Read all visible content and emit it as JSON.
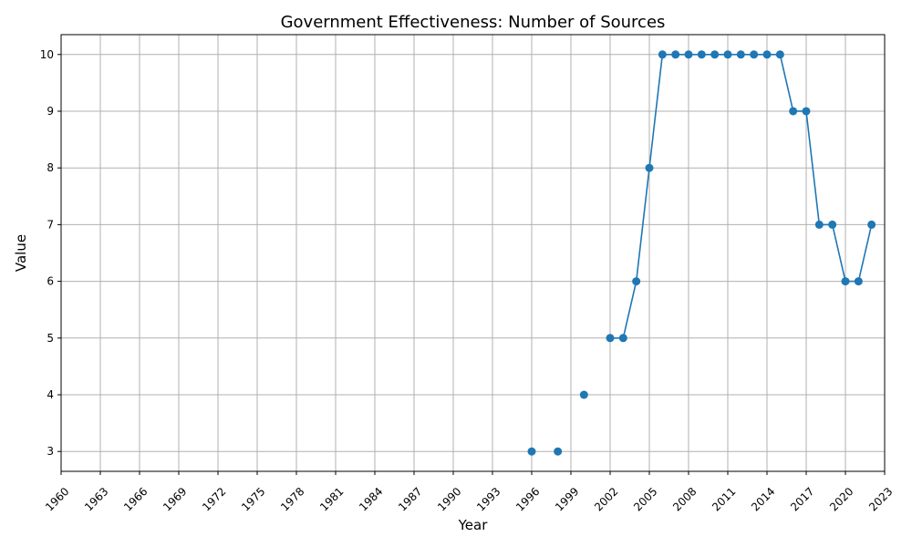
{
  "chart_data": {
    "type": "line",
    "title": "Government Effectiveness: Number of Sources",
    "xlabel": "Year",
    "ylabel": "Value",
    "xlim": [
      1960,
      2023
    ],
    "ylim": [
      2.65,
      10.35
    ],
    "x_ticks": [
      1960,
      1963,
      1966,
      1969,
      1972,
      1975,
      1978,
      1981,
      1984,
      1987,
      1990,
      1993,
      1996,
      1999,
      2002,
      2005,
      2008,
      2011,
      2014,
      2017,
      2020,
      2023
    ],
    "y_ticks": [
      3,
      4,
      5,
      6,
      7,
      8,
      9,
      10
    ],
    "grid": true,
    "series": [
      {
        "color": "#1f77b4",
        "marker": "circle",
        "x": [
          1996,
          1997,
          1998,
          1999,
          2000,
          2001,
          2002,
          2003,
          2004,
          2005,
          2006,
          2007,
          2008,
          2009,
          2010,
          2011,
          2012,
          2013,
          2014,
          2015,
          2016,
          2017,
          2018,
          2019,
          2020,
          2021,
          2022
        ],
        "y": [
          3,
          null,
          3,
          null,
          4,
          null,
          5,
          5,
          6,
          8,
          10,
          10,
          10,
          10,
          10,
          10,
          10,
          10,
          10,
          10,
          9,
          9,
          7,
          7,
          6,
          6,
          7
        ]
      }
    ]
  }
}
